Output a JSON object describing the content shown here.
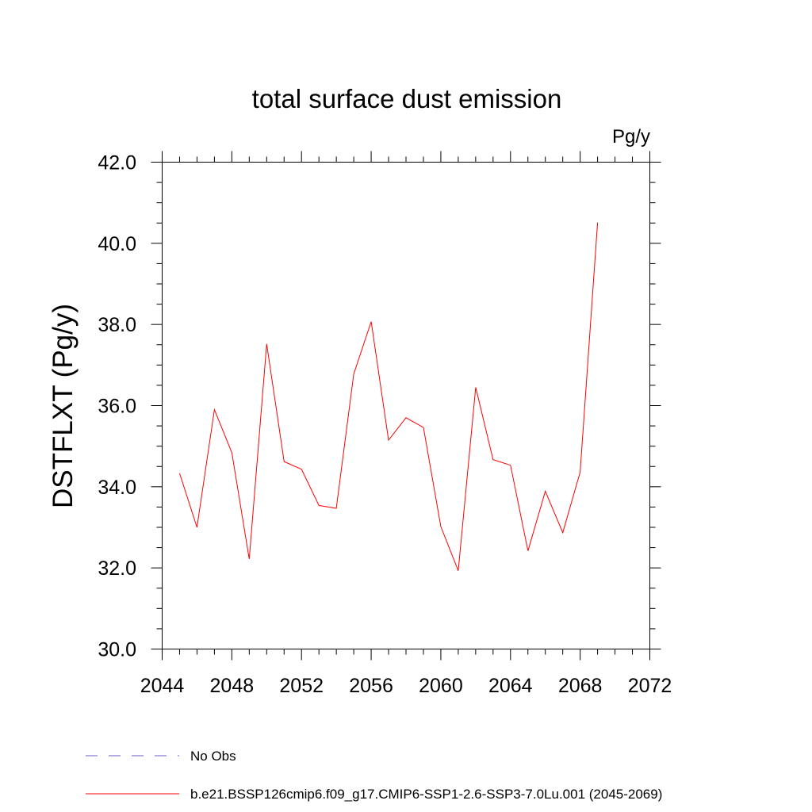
{
  "chart_data": {
    "type": "line",
    "title": "total surface dust emission",
    "units": "Pg/y",
    "ylabel": "DSTFLXT  (Pg/y)",
    "xlabel": "",
    "xlim": [
      2044,
      2072
    ],
    "ylim": [
      30.0,
      42.0
    ],
    "xticks": [
      2044,
      2048,
      2052,
      2056,
      2060,
      2064,
      2068,
      2072
    ],
    "xtick_labels": [
      "2044",
      "2048",
      "2052",
      "2056",
      "2060",
      "2064",
      "2068",
      "2072"
    ],
    "yticks": [
      30,
      32,
      34,
      36,
      38,
      40,
      42
    ],
    "ytick_labels": [
      "30.0",
      "32.0",
      "34.0",
      "36.0",
      "38.0",
      "40.0",
      "42.0"
    ],
    "grid": false,
    "legend_position": "bottom",
    "series": [
      {
        "name": "b.e21.BSSP126cmip6.f09_g17.CMIP6-SSP1-2.6-SSP3-7.0Lu.001 (2045-2069)",
        "color": "#ff0000",
        "x": [
          2045,
          2046,
          2047,
          2048,
          2049,
          2050,
          2051,
          2052,
          2053,
          2054,
          2055,
          2056,
          2057,
          2058,
          2059,
          2060,
          2061,
          2062,
          2063,
          2064,
          2065,
          2066,
          2067,
          2068,
          2069
        ],
        "values": [
          34.33,
          33.0,
          35.9,
          34.84,
          32.22,
          37.52,
          34.62,
          34.43,
          33.54,
          33.47,
          36.78,
          38.07,
          35.15,
          35.7,
          35.46,
          33.02,
          31.93,
          36.45,
          34.67,
          34.53,
          32.42,
          33.89,
          32.87,
          34.36,
          40.51
        ]
      }
    ],
    "legend": [
      {
        "label": "No Obs",
        "color": "#6a5acd",
        "dash": "dashed"
      },
      {
        "label": "b.e21.BSSP126cmip6.f09_g17.CMIP6-SSP1-2.6-SSP3-7.0Lu.001 (2045-2069)",
        "color": "#ff0000",
        "dash": "solid"
      }
    ]
  }
}
